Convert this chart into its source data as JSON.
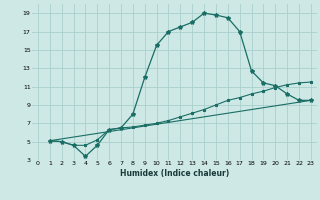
{
  "xlabel": "Humidex (Indice chaleur)",
  "background_color": "#cde8e5",
  "grid_color": "#aacfcc",
  "line_color": "#1a6e65",
  "xlim": [
    -0.5,
    23.5
  ],
  "ylim": [
    3,
    20
  ],
  "xticks": [
    0,
    1,
    2,
    3,
    4,
    5,
    6,
    7,
    8,
    9,
    10,
    11,
    12,
    13,
    14,
    15,
    16,
    17,
    18,
    19,
    20,
    21,
    22,
    23
  ],
  "yticks": [
    3,
    5,
    7,
    9,
    11,
    13,
    15,
    17,
    19
  ],
  "curve1_x": [
    1,
    2,
    3,
    4,
    5,
    6,
    7,
    8,
    9,
    10,
    11,
    12,
    13,
    14,
    15,
    16,
    17,
    18,
    19,
    20,
    21,
    22,
    23
  ],
  "curve1_y": [
    5.1,
    5.0,
    4.6,
    3.4,
    4.6,
    6.3,
    6.5,
    8.0,
    12.0,
    15.5,
    17.0,
    17.5,
    18.0,
    19.0,
    18.8,
    18.5,
    17.0,
    12.7,
    11.4,
    11.1,
    10.2,
    9.5,
    9.5
  ],
  "curve2_x": [
    1,
    2,
    3,
    4,
    5,
    6,
    7,
    8,
    9,
    10,
    11,
    12,
    13,
    14,
    15,
    16,
    17,
    18,
    19,
    20,
    21,
    22,
    23
  ],
  "curve2_y": [
    5.1,
    5.0,
    4.6,
    4.6,
    5.2,
    6.3,
    6.5,
    6.6,
    6.8,
    7.0,
    7.3,
    7.7,
    8.1,
    8.5,
    9.0,
    9.5,
    9.8,
    10.2,
    10.5,
    10.9,
    11.2,
    11.4,
    11.5
  ],
  "curve3_x": [
    1,
    23
  ],
  "curve3_y": [
    5.1,
    9.5
  ]
}
